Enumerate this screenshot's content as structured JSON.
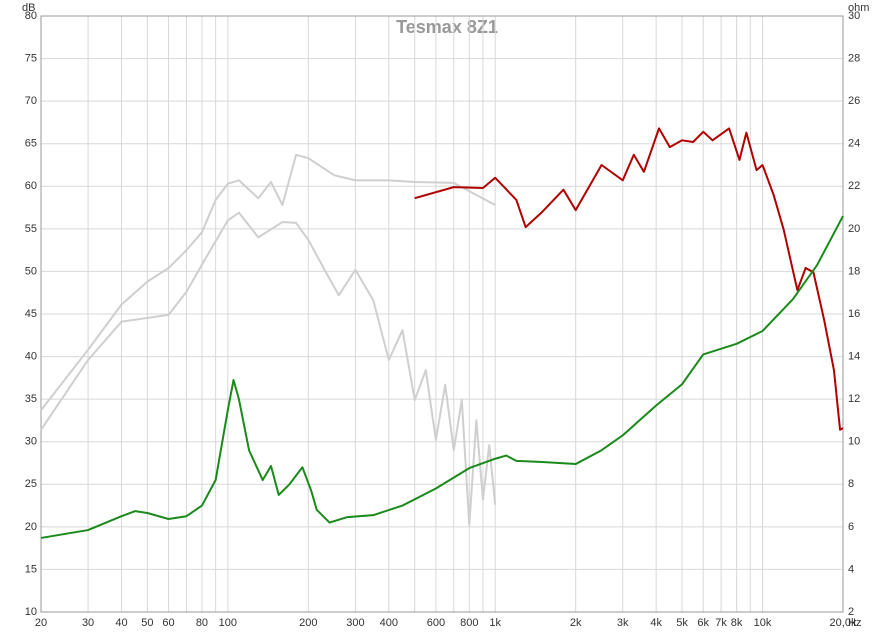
{
  "chart_data": {
    "type": "line",
    "title": "Tesmax 8Z1",
    "y_label": "dB",
    "y2_label": "ohm",
    "x_label": "Hz",
    "xscale": "log",
    "grid": true,
    "xlim": [
      20,
      20000
    ],
    "ylim": [
      10,
      80
    ],
    "y2lim": [
      2,
      30
    ],
    "xticks": [
      20,
      30,
      40,
      50,
      60,
      80,
      100,
      200,
      300,
      400,
      600,
      800,
      {
        "value": 1000,
        "label": "1k"
      },
      {
        "value": 2000,
        "label": "2k"
      },
      {
        "value": 3000,
        "label": "3k"
      },
      {
        "value": 4000,
        "label": "4k"
      },
      {
        "value": 5000,
        "label": "5k"
      },
      {
        "value": 6000,
        "label": "6k"
      },
      {
        "value": 7000,
        "label": "7k"
      },
      {
        "value": 8000,
        "label": "8k"
      },
      {
        "value": 10000,
        "label": "10k"
      },
      {
        "value": 20000,
        "label": "20,0k"
      }
    ],
    "xminor": [
      70,
      90,
      500,
      700,
      900,
      9000
    ],
    "yticks": [
      10,
      15,
      20,
      25,
      30,
      35,
      40,
      45,
      50,
      55,
      60,
      65,
      70,
      75,
      80
    ],
    "y2ticks": [
      2,
      4,
      6,
      8,
      10,
      12,
      14,
      16,
      18,
      20,
      22,
      24,
      26,
      28,
      30
    ],
    "series": [
      {
        "color": "#cfcfcf",
        "x": [
          20,
          30,
          40,
          50,
          60,
          70,
          80,
          90,
          100,
          110,
          130,
          145,
          160,
          180,
          200,
          250,
          300,
          400,
          500,
          700,
          1000
        ],
        "values": [
          33.7,
          40.8,
          46.1,
          48.8,
          50.4,
          52.5,
          54.6,
          58.4,
          60.3,
          60.7,
          58.6,
          60.5,
          57.8,
          63.7,
          63.3,
          61.3,
          60.7,
          60.7,
          60.5,
          60.4,
          57.8
        ]
      },
      {
        "color": "#cfcfcf",
        "x": [
          20,
          30,
          40,
          60,
          70,
          80,
          100,
          110,
          130,
          160,
          180,
          200,
          230,
          260,
          300,
          350,
          400,
          450,
          500,
          550,
          600,
          650,
          700,
          750,
          800,
          850,
          900,
          950,
          1000
        ],
        "values": [
          31.4,
          39.6,
          44.1,
          44.9,
          47.6,
          50.8,
          56.0,
          56.9,
          54.0,
          55.8,
          55.7,
          53.7,
          50.2,
          47.2,
          50.2,
          46.6,
          39.6,
          43.1,
          34.9,
          38.4,
          30.2,
          36.7,
          29.0,
          34.9,
          20.2,
          32.5,
          23.2,
          29.6,
          22.6
        ]
      },
      {
        "color": "#b00000",
        "x": [
          500,
          700,
          900,
          1000,
          1200,
          1300,
          1500,
          1800,
          2000,
          2500,
          3000,
          3300,
          3600,
          4100,
          4500,
          5000,
          5500,
          6000,
          6500,
          7500,
          8200,
          8700,
          9500,
          10000,
          11000,
          12000,
          13500,
          14500,
          15500,
          17000,
          18500,
          19500,
          20000
        ],
        "values": [
          58.6,
          59.9,
          59.8,
          61.0,
          58.4,
          55.2,
          57.0,
          59.6,
          57.2,
          62.5,
          60.7,
          63.7,
          61.7,
          66.8,
          64.6,
          65.4,
          65.2,
          66.4,
          65.4,
          66.8,
          63.1,
          66.3,
          61.9,
          62.5,
          59.0,
          54.9,
          47.8,
          50.4,
          49.9,
          44.3,
          38.4,
          31.4,
          31.6
        ]
      },
      {
        "color": "#1a8a1a",
        "axis": "y2",
        "x": [
          20,
          30,
          40,
          45,
          50,
          60,
          70,
          80,
          90,
          100,
          105,
          110,
          120,
          135,
          145,
          155,
          170,
          190,
          205,
          215,
          240,
          280,
          350,
          450,
          600,
          800,
          1000,
          1100,
          1200,
          1500,
          2000,
          2500,
          3000,
          4000,
          5000,
          6000,
          8000,
          10000,
          13000,
          16000,
          20000
        ],
        "values": [
          5.48,
          5.85,
          6.5,
          6.74,
          6.65,
          6.37,
          6.5,
          7.0,
          8.2,
          11.5,
          12.9,
          12.0,
          9.6,
          8.2,
          8.86,
          7.5,
          8.0,
          8.8,
          7.7,
          6.8,
          6.2,
          6.46,
          6.55,
          7.0,
          7.8,
          8.76,
          9.2,
          9.35,
          9.1,
          9.05,
          8.95,
          9.6,
          10.3,
          11.7,
          12.7,
          14.1,
          14.6,
          15.2,
          16.7,
          18.3,
          20.6
        ]
      }
    ]
  }
}
